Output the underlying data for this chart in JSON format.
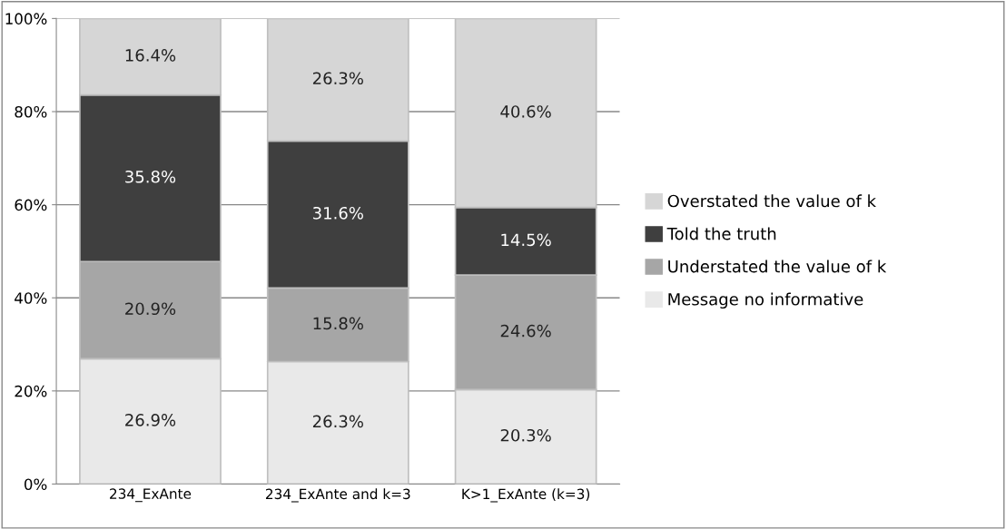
{
  "chart_data": {
    "type": "bar",
    "stacked": true,
    "categories": [
      "234_ExAnte",
      "234_ExAnte and k=3",
      "K>1_ExAnte (k=3)"
    ],
    "series": [
      {
        "name": "Message no informative",
        "color": "#e9e9e9",
        "values": [
          26.9,
          26.3,
          20.3
        ],
        "value_labels": [
          "26.9%",
          "26.3%",
          "20.3%"
        ]
      },
      {
        "name": "Understated the value of k",
        "color": "#a6a6a6",
        "values": [
          20.9,
          15.8,
          24.6
        ],
        "value_labels": [
          "20.9%",
          "15.8%",
          "24.6%"
        ]
      },
      {
        "name": "Told the truth",
        "color": "#3f3f3f",
        "values": [
          35.8,
          31.6,
          14.5
        ],
        "value_labels": [
          "35.8%",
          "31.6%",
          "14.5%"
        ]
      },
      {
        "name": "Overstated the value of k",
        "color": "#d6d6d6",
        "values": [
          16.4,
          26.3,
          40.6
        ],
        "value_labels": [
          "16.4%",
          "26.3%",
          "40.6%"
        ]
      }
    ],
    "ylim": [
      0,
      100
    ],
    "yticks": [
      {
        "value": 0,
        "label": "0%"
      },
      {
        "value": 20,
        "label": "20%"
      },
      {
        "value": 40,
        "label": "40%"
      },
      {
        "value": 60,
        "label": "60%"
      },
      {
        "value": 80,
        "label": "80%"
      },
      {
        "value": 100,
        "label": "100%"
      }
    ],
    "grid": "y",
    "legend": "right"
  }
}
